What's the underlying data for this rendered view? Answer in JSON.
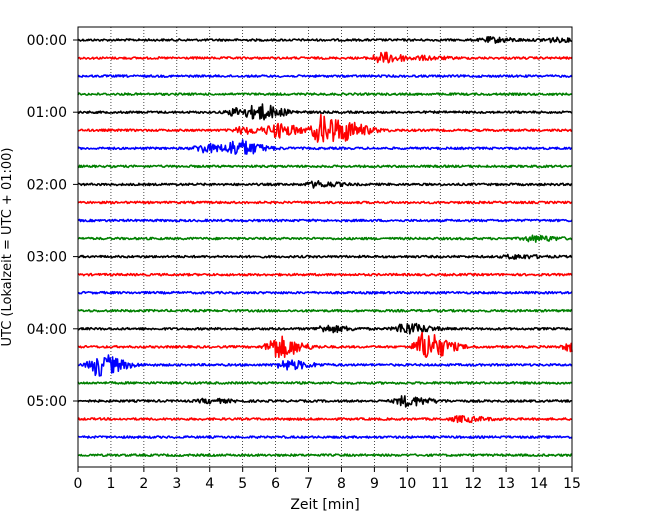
{
  "chart_data": {
    "type": "line",
    "xlabel": "Zeit  [min]",
    "ylabel": "UTC (Lokalzeit = UTC + 01:00)",
    "xlim": [
      0,
      15
    ],
    "x_ticks": [
      "0",
      "1",
      "2",
      "3",
      "4",
      "5",
      "6",
      "7",
      "8",
      "9",
      "10",
      "11",
      "12",
      "13",
      "14",
      "15"
    ],
    "y_tick_labels": [
      "00:00",
      "01:00",
      "02:00",
      "03:00",
      "04:00",
      "05:00"
    ],
    "grid": "vertical-dotted",
    "trace_minutes": 15,
    "trace_colors": [
      "#000000",
      "#ff0000",
      "#0000ff",
      "#008000"
    ],
    "traces": [
      {
        "start": "00:00",
        "events": [
          {
            "t": 12.5,
            "amp": 0.25
          },
          {
            "t": 14.3,
            "amp": 0.2
          }
        ]
      },
      {
        "start": "00:15",
        "events": [
          {
            "t": 9.2,
            "amp": 0.55
          },
          {
            "t": 10.5,
            "amp": 0.15
          }
        ]
      },
      {
        "start": "00:30",
        "events": []
      },
      {
        "start": "00:45",
        "events": []
      },
      {
        "start": "01:00",
        "events": [
          {
            "t": 5.5,
            "amp": 0.7
          },
          {
            "t": 4.8,
            "amp": 0.45
          }
        ]
      },
      {
        "start": "01:15",
        "events": [
          {
            "t": 7.4,
            "amp": 1.6
          },
          {
            "t": 6.0,
            "amp": 0.7
          },
          {
            "t": 8.2,
            "amp": 0.55
          },
          {
            "t": 5.0,
            "amp": 0.35
          }
        ]
      },
      {
        "start": "01:30",
        "events": [
          {
            "t": 4.8,
            "amp": 0.85
          },
          {
            "t": 3.8,
            "amp": 0.45
          }
        ]
      },
      {
        "start": "01:45",
        "events": []
      },
      {
        "start": "02:00",
        "events": [
          {
            "t": 7.2,
            "amp": 0.3
          }
        ]
      },
      {
        "start": "02:15",
        "events": []
      },
      {
        "start": "02:30",
        "events": []
      },
      {
        "start": "02:45",
        "events": [
          {
            "t": 13.8,
            "amp": 0.3
          }
        ]
      },
      {
        "start": "03:00",
        "events": [
          {
            "t": 13.2,
            "amp": 0.2
          }
        ]
      },
      {
        "start": "03:15",
        "events": []
      },
      {
        "start": "03:30",
        "events": []
      },
      {
        "start": "03:45",
        "events": []
      },
      {
        "start": "04:00",
        "events": [
          {
            "t": 9.9,
            "amp": 0.6
          },
          {
            "t": 7.5,
            "amp": 0.35
          }
        ]
      },
      {
        "start": "04:15",
        "events": [
          {
            "t": 10.5,
            "amp": 1.6
          },
          {
            "t": 6.0,
            "amp": 1.2
          },
          {
            "t": 15.0,
            "amp": 0.5
          }
        ]
      },
      {
        "start": "04:30",
        "events": [
          {
            "t": 0.6,
            "amp": 1.2
          },
          {
            "t": 6.3,
            "amp": 0.5
          }
        ]
      },
      {
        "start": "04:45",
        "events": []
      },
      {
        "start": "05:00",
        "events": [
          {
            "t": 9.9,
            "amp": 0.55
          },
          {
            "t": 3.9,
            "amp": 0.2
          }
        ]
      },
      {
        "start": "05:15",
        "events": [
          {
            "t": 11.6,
            "amp": 0.3
          }
        ]
      },
      {
        "start": "05:30",
        "events": []
      },
      {
        "start": "05:45",
        "events": []
      }
    ]
  }
}
